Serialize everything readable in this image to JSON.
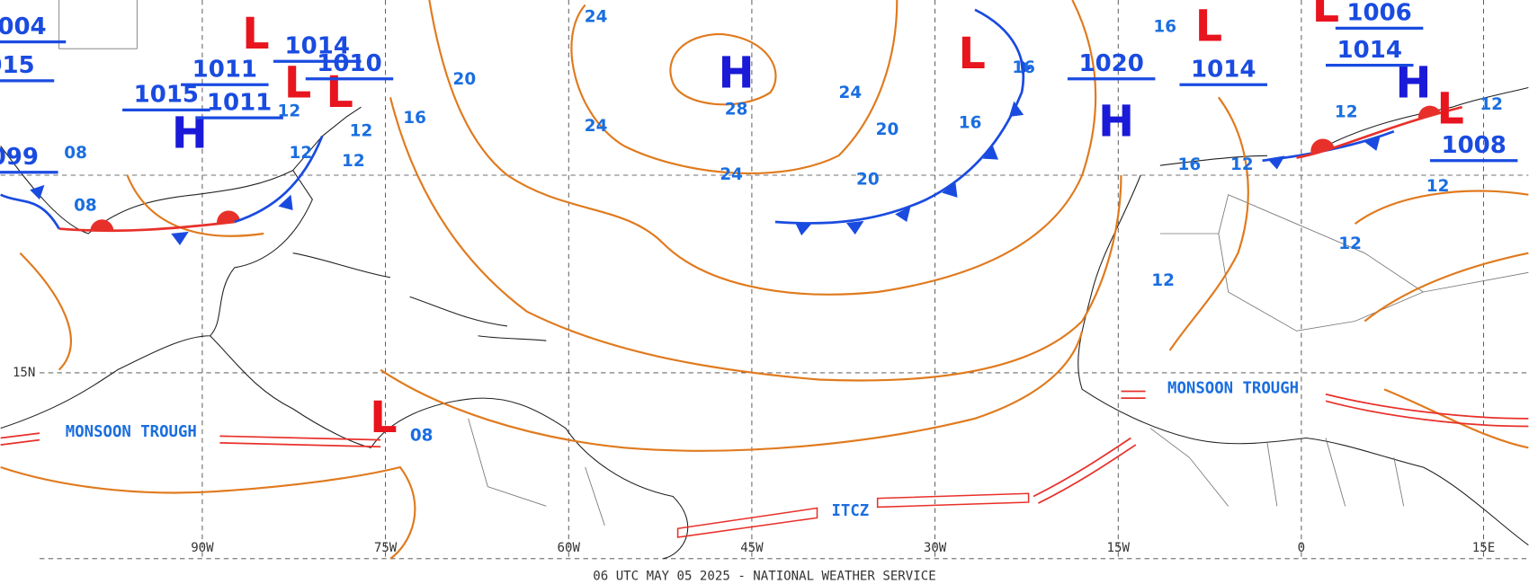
{
  "map": {
    "footer": "06 UTC MAY 05 2025 - NATIONAL WEATHER SERVICE",
    "longitude_labels": [
      "90W",
      "75W",
      "60W",
      "45W",
      "30W",
      "15W",
      "0",
      "15E"
    ],
    "latitude_labels": [
      "15N"
    ],
    "pressure_centers": [
      {
        "label": "H",
        "type": "high"
      },
      {
        "label": "H",
        "type": "high"
      },
      {
        "label": "H",
        "type": "high"
      },
      {
        "label": "H",
        "type": "high"
      },
      {
        "label": "L",
        "type": "low"
      },
      {
        "label": "L",
        "type": "low"
      },
      {
        "label": "L",
        "type": "low"
      },
      {
        "label": "L",
        "type": "low"
      },
      {
        "label": "L",
        "type": "low"
      },
      {
        "label": "L",
        "type": "low"
      },
      {
        "label": "L",
        "type": "low"
      },
      {
        "label": "L",
        "type": "low"
      }
    ],
    "pressure_values": [
      "1011",
      "1015",
      "1011",
      "1014",
      "1010",
      "1020",
      "1014",
      "1006",
      "1014",
      "1008",
      "004",
      "015",
      "099"
    ],
    "isobar_labels": [
      "24",
      "20",
      "24",
      "28",
      "24",
      "24",
      "20",
      "20",
      "16",
      "16",
      "16",
      "12",
      "12",
      "12",
      "12",
      "08",
      "08",
      "08",
      "16",
      "16",
      "12",
      "12",
      "12",
      "12",
      "12",
      "12"
    ],
    "features": [
      "MONSOON TROUGH",
      "MONSOON TROUGH",
      "ITCZ"
    ]
  }
}
